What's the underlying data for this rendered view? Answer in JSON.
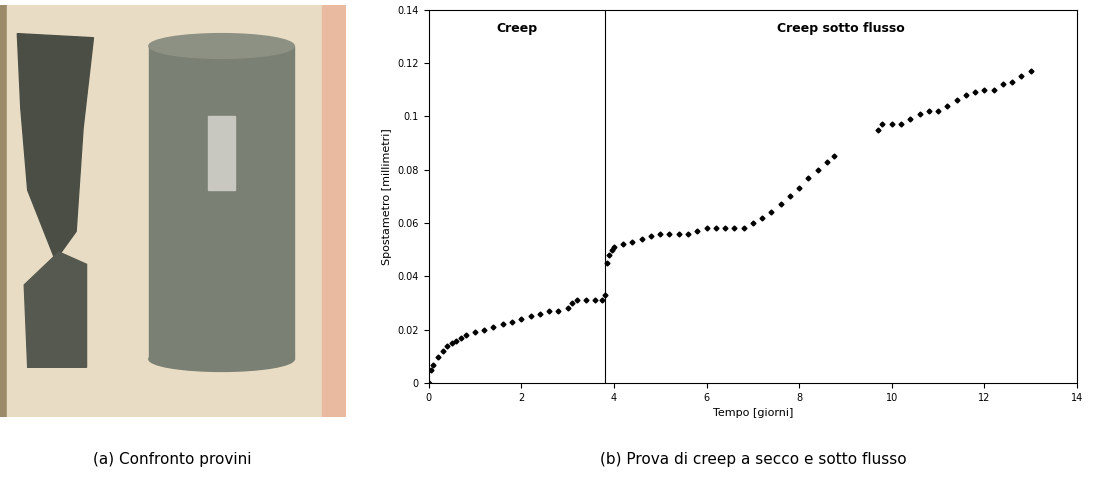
{
  "photo": {
    "caption": "(a) Confronto provini"
  },
  "chart_data": {
    "type": "scatter",
    "caption": "(b) Prova di creep a secco e sotto flusso",
    "x_label": "Tempo [giorni]",
    "y_label": "Spostametro [millimetri]",
    "xlim": [
      0,
      14
    ],
    "xticks": [
      0,
      2,
      4,
      6,
      8,
      10,
      12,
      14
    ],
    "ylim": [
      0,
      0.14
    ],
    "yticks": [
      0,
      0.02,
      0.04,
      0.06,
      0.08,
      0.1,
      0.12,
      0.14
    ],
    "grid": false,
    "phase_boundary": 3.8,
    "phases": [
      "Creep",
      "Creep sotto flusso"
    ],
    "marker": "diamond",
    "line_style": "none",
    "color": "#000000",
    "x": [
      0,
      0.05,
      0.1,
      0.2,
      0.3,
      0.4,
      0.5,
      0.6,
      0.7,
      0.8,
      1.0,
      1.2,
      1.4,
      1.6,
      1.8,
      2.0,
      2.2,
      2.4,
      2.6,
      2.8,
      3.0,
      3.1,
      3.2,
      3.4,
      3.6,
      3.75,
      3.8,
      3.85,
      3.9,
      3.95,
      4.0,
      4.2,
      4.4,
      4.6,
      4.8,
      5.0,
      5.2,
      5.4,
      5.6,
      5.8,
      6.0,
      6.2,
      6.4,
      6.6,
      6.8,
      7.0,
      7.2,
      7.4,
      7.6,
      7.8,
      8.0,
      8.2,
      8.4,
      8.6,
      8.75,
      9.7,
      9.8,
      10.0,
      10.2,
      10.4,
      10.6,
      10.8,
      11.0,
      11.2,
      11.4,
      11.6,
      11.8,
      12.0,
      12.2,
      12.4,
      12.6,
      12.8,
      13.0
    ],
    "values": [
      0,
      0.005,
      0.007,
      0.01,
      0.012,
      0.014,
      0.015,
      0.016,
      0.017,
      0.018,
      0.019,
      0.02,
      0.021,
      0.022,
      0.023,
      0.024,
      0.025,
      0.026,
      0.027,
      0.027,
      0.028,
      0.03,
      0.031,
      0.031,
      0.031,
      0.031,
      0.033,
      0.045,
      0.048,
      0.05,
      0.051,
      0.052,
      0.053,
      0.054,
      0.055,
      0.056,
      0.056,
      0.056,
      0.056,
      0.057,
      0.058,
      0.058,
      0.058,
      0.058,
      0.058,
      0.06,
      0.062,
      0.064,
      0.067,
      0.07,
      0.073,
      0.077,
      0.08,
      0.083,
      0.085,
      0.095,
      0.097,
      0.097,
      0.097,
      0.099,
      0.101,
      0.102,
      0.102,
      0.104,
      0.106,
      0.108,
      0.109,
      0.11,
      0.11,
      0.112,
      0.113,
      0.115,
      0.117
    ]
  }
}
